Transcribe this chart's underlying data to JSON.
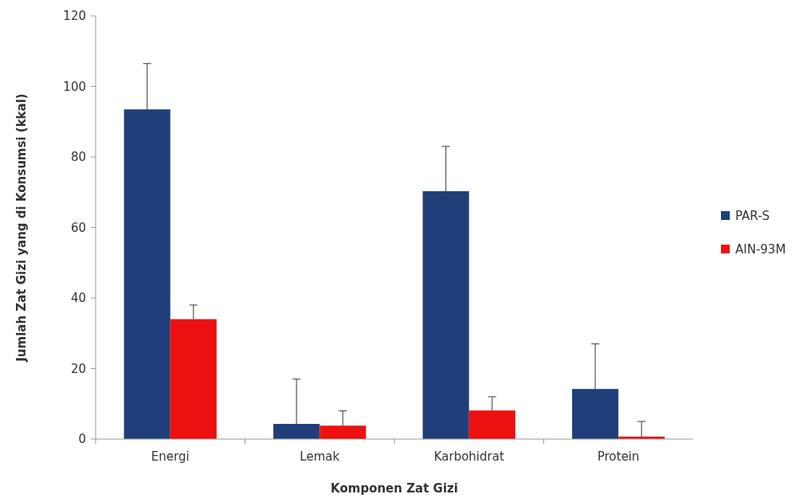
{
  "chart_data": {
    "type": "bar",
    "xlabel": "Komponen Zat Gizi",
    "ylabel": "Jumlah Zat Gizi  yang di Konsumsi (kkal)",
    "categories": [
      "Energi",
      "Lemak",
      "Karbohidrat",
      "Protein"
    ],
    "series": [
      {
        "name": "PAR-S",
        "color": "#203f7a",
        "values": [
          93.5,
          4.3,
          70.3,
          14.2
        ],
        "errors": [
          [
            93.5,
            106.5
          ],
          [
            4.3,
            17
          ],
          [
            70.3,
            83
          ],
          [
            14.2,
            27
          ]
        ]
      },
      {
        "name": "AIN-93M",
        "color": "#ee1111",
        "values": [
          34,
          3.8,
          8.1,
          0.7
        ],
        "errors": [
          [
            34,
            38
          ],
          [
            3.8,
            8
          ],
          [
            8.1,
            12
          ],
          [
            0.7,
            5
          ]
        ]
      }
    ],
    "ylim": [
      0,
      120
    ],
    "yticks": [
      0,
      20,
      40,
      60,
      80,
      100,
      120
    ],
    "legend": "right"
  }
}
